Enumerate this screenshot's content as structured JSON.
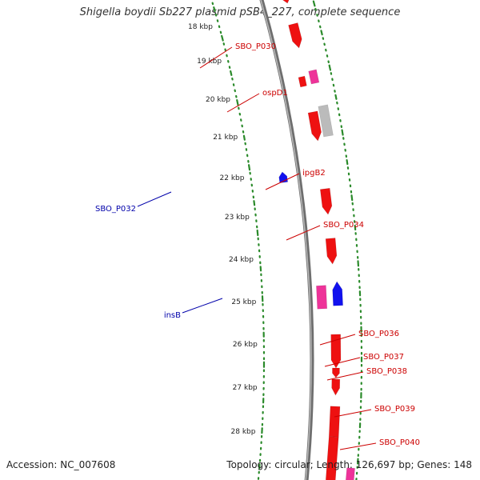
{
  "title": "Shigella boydii Sb227 plasmid pSB4_227, complete sequence",
  "footer": {
    "accession": "Accession: NC_007608",
    "summary": "Topology: circular; Length: 126,697 bp; Genes: 148"
  },
  "colors": {
    "backbone": "#888888",
    "gc_dots": "#2a8a2a",
    "forward_gene": "#ee1111",
    "reverse_gene": "#1111ee",
    "is_element": "#ee3399",
    "rna_gray": "#bbbbbb",
    "forward_label": "#cc0000",
    "reverse_label": "#0000aa"
  },
  "ticks": [
    "18 kbp",
    "19 kbp",
    "20 kbp",
    "21 kbp",
    "22 kbp",
    "23 kbp",
    "24 kbp",
    "25 kbp",
    "26 kbp",
    "27 kbp",
    "28 kbp"
  ],
  "gene_labels": [
    {
      "text": "SBO_P030",
      "strand": "forward"
    },
    {
      "text": "ospD1",
      "strand": "forward"
    },
    {
      "text": "ipgB2",
      "strand": "forward"
    },
    {
      "text": "SBO_P034",
      "strand": "forward"
    },
    {
      "text": "SBO_P036",
      "strand": "forward"
    },
    {
      "text": "SBO_P037",
      "strand": "forward"
    },
    {
      "text": "SBO_P038",
      "strand": "forward"
    },
    {
      "text": "SBO_P039",
      "strand": "forward"
    },
    {
      "text": "SBO_P040",
      "strand": "forward"
    },
    {
      "text": "SBO_P032",
      "strand": "reverse"
    },
    {
      "text": "insB",
      "strand": "reverse"
    }
  ]
}
